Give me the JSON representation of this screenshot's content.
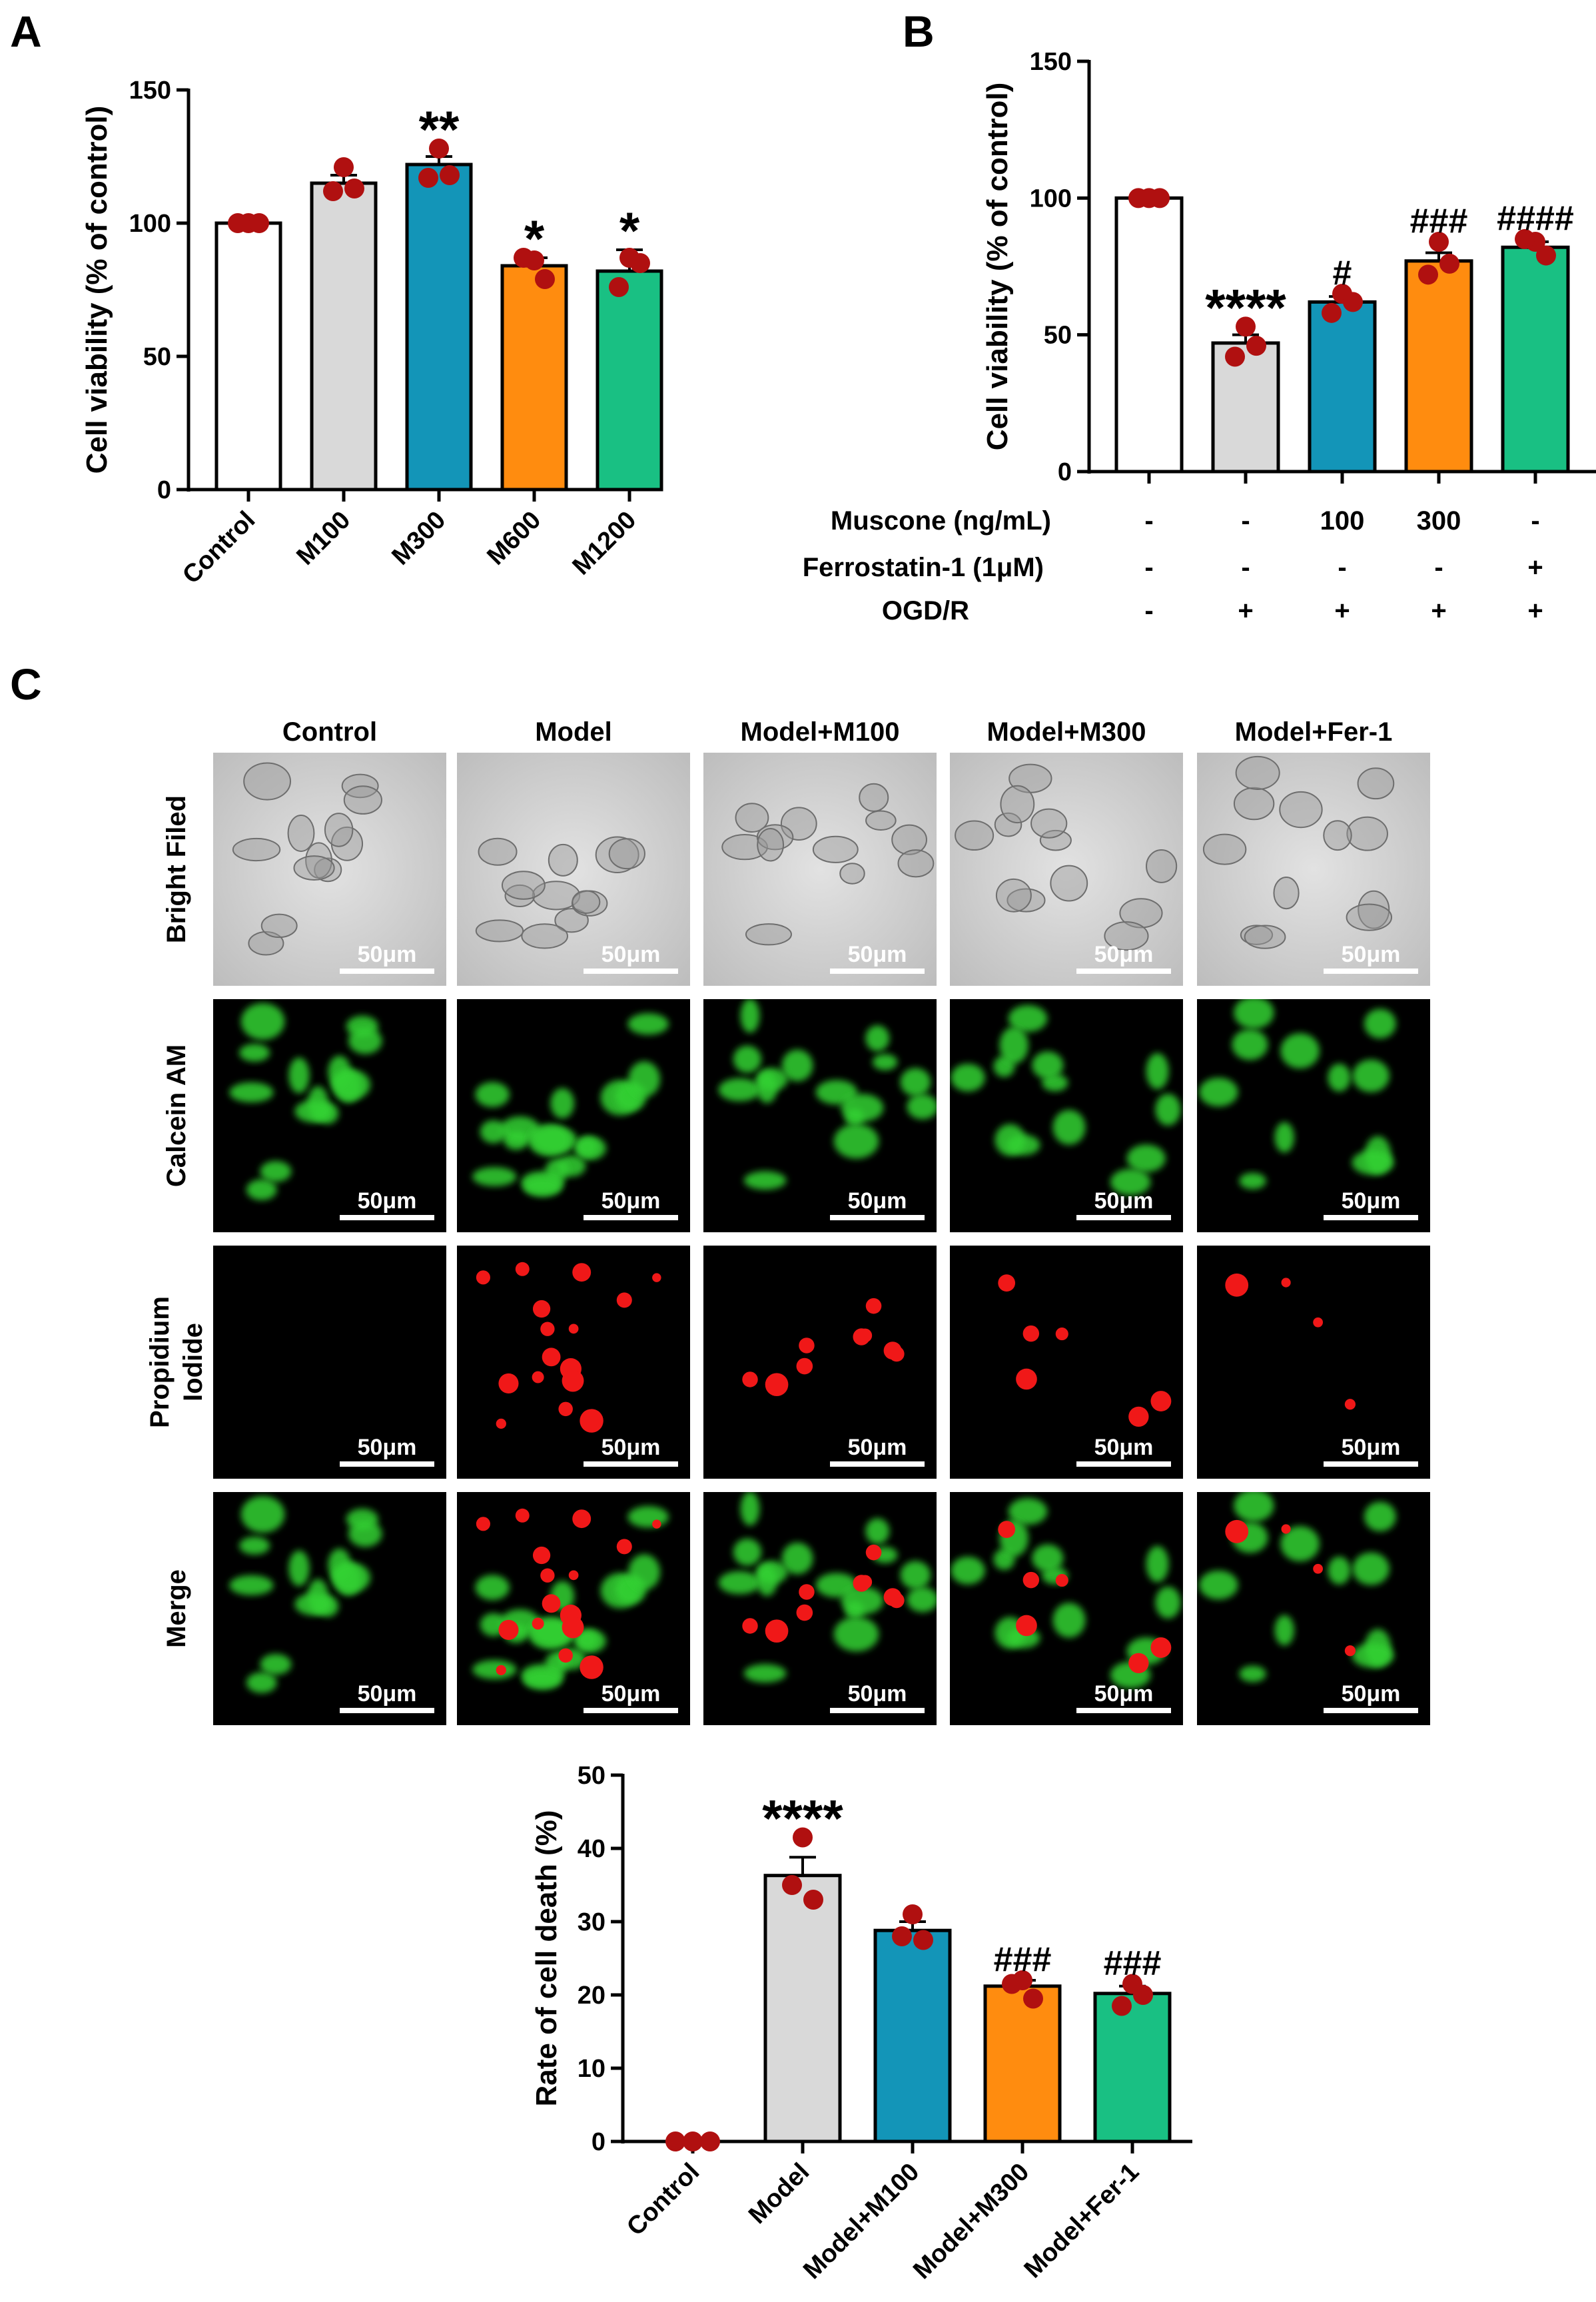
{
  "colors": {
    "control": "#ffffff",
    "grey": "#d9d9d9",
    "teal": "#1395b8",
    "orange": "#ff8c0f",
    "green": "#19c083",
    "dot": "#b01010",
    "calcein": "#33d233",
    "pi": "#f01818",
    "bright_bg": "#d2d2d2"
  },
  "panels": {
    "a_letter": "A",
    "b_letter": "B",
    "c_letter": "C"
  },
  "chart_data": [
    {
      "id": "A",
      "type": "bar",
      "ylabel": "Cell viability (% of control)",
      "ylim": [
        0,
        150
      ],
      "yticks": [
        0,
        50,
        100,
        150
      ],
      "categories": [
        "Control",
        "M100",
        "M300",
        "M600",
        "M1200"
      ],
      "values": [
        100,
        115,
        122,
        84,
        82
      ],
      "errors": [
        0,
        3,
        3,
        3,
        8
      ],
      "points": [
        [
          100,
          100,
          100
        ],
        [
          121,
          112,
          113
        ],
        [
          128,
          117,
          118
        ],
        [
          86,
          87,
          79
        ],
        [
          87,
          76,
          85
        ]
      ],
      "colors": [
        "#ffffff",
        "#d9d9d9",
        "#1395b8",
        "#ff8c0f",
        "#19c083"
      ],
      "significance": [
        "",
        "",
        "**",
        "*",
        "*"
      ]
    },
    {
      "id": "B",
      "type": "bar",
      "ylabel": "Cell viability (% of control)",
      "ylim": [
        0,
        150
      ],
      "yticks": [
        0,
        50,
        100,
        150
      ],
      "categories": [
        "",
        "",
        "",
        "",
        ""
      ],
      "values": [
        100,
        47,
        62,
        77,
        82
      ],
      "errors": [
        0,
        3,
        2,
        3,
        2
      ],
      "points": [
        [
          100,
          100,
          100
        ],
        [
          53,
          42,
          46
        ],
        [
          65,
          58,
          62
        ],
        [
          84,
          72,
          76
        ],
        [
          84,
          85,
          79
        ]
      ],
      "colors": [
        "#ffffff",
        "#d9d9d9",
        "#1395b8",
        "#ff8c0f",
        "#19c083"
      ],
      "significance": [
        "",
        "****",
        "#",
        "###",
        "####"
      ],
      "treatment_table": [
        {
          "label": "Muscone (ng/mL)",
          "values": [
            "-",
            "-",
            "100",
            "300",
            "-"
          ]
        },
        {
          "label": "Ferrostatin-1 (1μM)",
          "values": [
            "-",
            "-",
            "-",
            "-",
            "+"
          ]
        },
        {
          "label": "OGD/R",
          "values": [
            "-",
            "+",
            "+",
            "+",
            "+"
          ]
        }
      ]
    },
    {
      "id": "C",
      "type": "bar",
      "ylabel": "Rate of cell death (%)",
      "ylim": [
        0,
        50
      ],
      "yticks": [
        0,
        10,
        20,
        30,
        40,
        50
      ],
      "categories": [
        "Control",
        "Model",
        "Model+M100",
        "Model+M300",
        "Model+Fer-1"
      ],
      "values": [
        0,
        36.3,
        28.8,
        21.2,
        20.2
      ],
      "errors": [
        0,
        2.5,
        1.2,
        0.8,
        1.0
      ],
      "points": [
        [
          0,
          0,
          0
        ],
        [
          41.5,
          35,
          33
        ],
        [
          31,
          28,
          27.5
        ],
        [
          22,
          21.5,
          19.5
        ],
        [
          21.5,
          18.5,
          20
        ]
      ],
      "colors": [
        "#ffffff",
        "#d9d9d9",
        "#1395b8",
        "#ff8c0f",
        "#19c083"
      ],
      "significance": [
        "",
        "****",
        "",
        "###",
        "###"
      ]
    }
  ],
  "micrographs": {
    "columns": [
      "Control",
      "Model",
      "Model+M100",
      "Model+M300",
      "Model+Fer-1"
    ],
    "rows": [
      {
        "label_lines": [
          "Bright Filed"
        ],
        "kind": "bright"
      },
      {
        "label_lines": [
          "Calcein AM"
        ],
        "kind": "calcein"
      },
      {
        "label_lines": [
          "Propidium",
          "Iodide"
        ],
        "kind": "pi"
      },
      {
        "label_lines": [
          "Merge"
        ],
        "kind": "merge"
      }
    ],
    "scale_bar_label": "50μm"
  }
}
